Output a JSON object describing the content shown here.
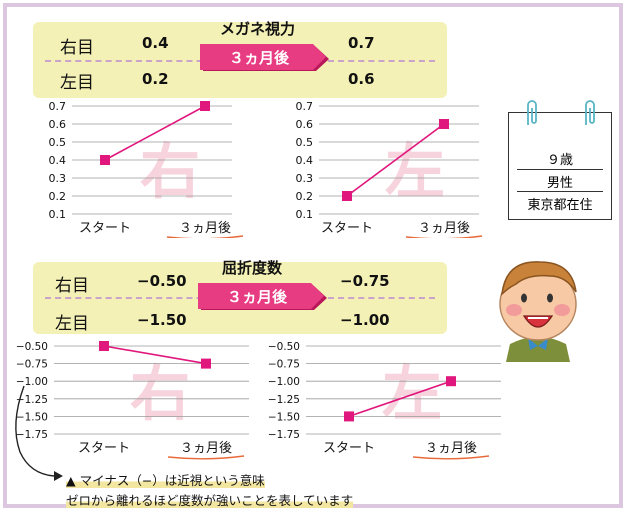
{
  "section1": {
    "title": "メガネ視力",
    "arrow_label": "３ヵ月後",
    "right": {
      "label": "右目",
      "before": "0.4",
      "after": "0.7"
    },
    "left": {
      "label": "左目",
      "before": "0.2",
      "after": "0.6"
    }
  },
  "section2": {
    "title": "屈折度数",
    "arrow_label": "３ヵ月後",
    "right": {
      "label": "右目",
      "before": "−0.50",
      "after": "−0.75"
    },
    "left": {
      "label": "左目",
      "before": "−1.50",
      "after": "−1.00"
    }
  },
  "info_card": {
    "age": "９歳",
    "sex": "男性",
    "location": "東京都在住"
  },
  "note": {
    "line1": "▲ マイナス（−）は近視という意味",
    "line2": "ゼロから離れるほど度数が強いことを表しています"
  },
  "colors": {
    "line": "#e0177c",
    "watermark": "#f7d3dd",
    "panel": "#f3f1b5",
    "arrow": "#e83c82",
    "border": "#dcc6e0"
  },
  "icons": [
    "clip-icon",
    "boy-illustration",
    "curved-arrow-icon"
  ],
  "chart_data": [
    {
      "type": "line",
      "watermark": "右",
      "categories": [
        "スタート",
        "３ヵ月後"
      ],
      "values": [
        0.4,
        0.7
      ],
      "ylim": [
        0.1,
        0.7
      ],
      "yticks": [
        "0.7",
        "0.6",
        "0.5",
        "0.4",
        "0.3",
        "0.2",
        "0.1"
      ]
    },
    {
      "type": "line",
      "watermark": "左",
      "categories": [
        "スタート",
        "３ヵ月後"
      ],
      "values": [
        0.2,
        0.6
      ],
      "ylim": [
        0.1,
        0.7
      ],
      "yticks": [
        "0.7",
        "0.6",
        "0.5",
        "0.4",
        "0.3",
        "0.2",
        "0.1"
      ]
    },
    {
      "type": "line",
      "watermark": "右",
      "categories": [
        "スタート",
        "３ヵ月後"
      ],
      "values": [
        -0.5,
        -0.75
      ],
      "ylim": [
        -1.75,
        -0.5
      ],
      "yticks": [
        "−0.50",
        "−0.75",
        "−1.00",
        "−1.25",
        "−1.50",
        "−1.75"
      ]
    },
    {
      "type": "line",
      "watermark": "左",
      "categories": [
        "スタート",
        "３ヵ月後"
      ],
      "values": [
        -1.5,
        -1.0
      ],
      "ylim": [
        -1.75,
        -0.5
      ],
      "yticks": [
        "−0.50",
        "−0.75",
        "−1.00",
        "−1.25",
        "−1.50",
        "−1.75"
      ]
    }
  ]
}
